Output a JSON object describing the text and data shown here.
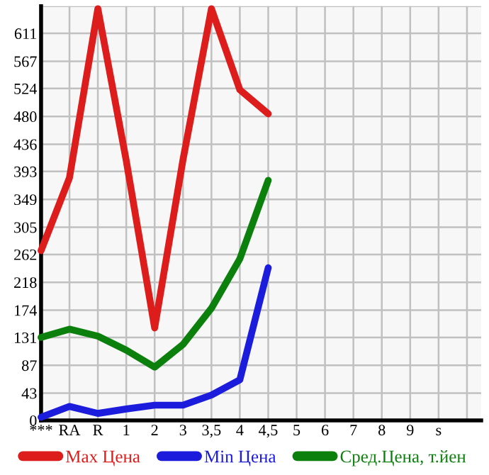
{
  "chart_data": {
    "type": "line",
    "categories": [
      "***",
      "RA",
      "R",
      "1",
      "2",
      "3",
      "3,5",
      "4",
      "4,5",
      "5",
      "6",
      "7",
      "8",
      "9",
      "s",
      null
    ],
    "series": [
      {
        "name": "Max Цена",
        "color": "#dd1c1c",
        "values": [
          268,
          383,
          650,
          410,
          146,
          412,
          650,
          522,
          484,
          null,
          null,
          null,
          null,
          null,
          null,
          null
        ]
      },
      {
        "name": "Min Цена",
        "color": "#1c1cdd",
        "values": [
          5,
          22,
          11,
          18,
          24,
          24,
          40,
          64,
          241,
          null,
          null,
          null,
          null,
          null,
          null,
          null
        ]
      },
      {
        "name": "Сред.Цена, т.йен",
        "color": "#0c800c",
        "values": [
          131,
          144,
          133,
          111,
          84,
          120,
          177,
          255,
          379,
          null,
          null,
          null,
          null,
          null,
          null,
          null
        ]
      }
    ],
    "ylim": [
      0,
      654
    ],
    "yticks": [
      0,
      43,
      87,
      131,
      174,
      218,
      262,
      305,
      349,
      393,
      436,
      480,
      524,
      567,
      611,
      {
        "value": 654,
        "label": null
      }
    ],
    "grid": true,
    "legend": "bottom",
    "marker": "none",
    "line_style": "solid"
  }
}
